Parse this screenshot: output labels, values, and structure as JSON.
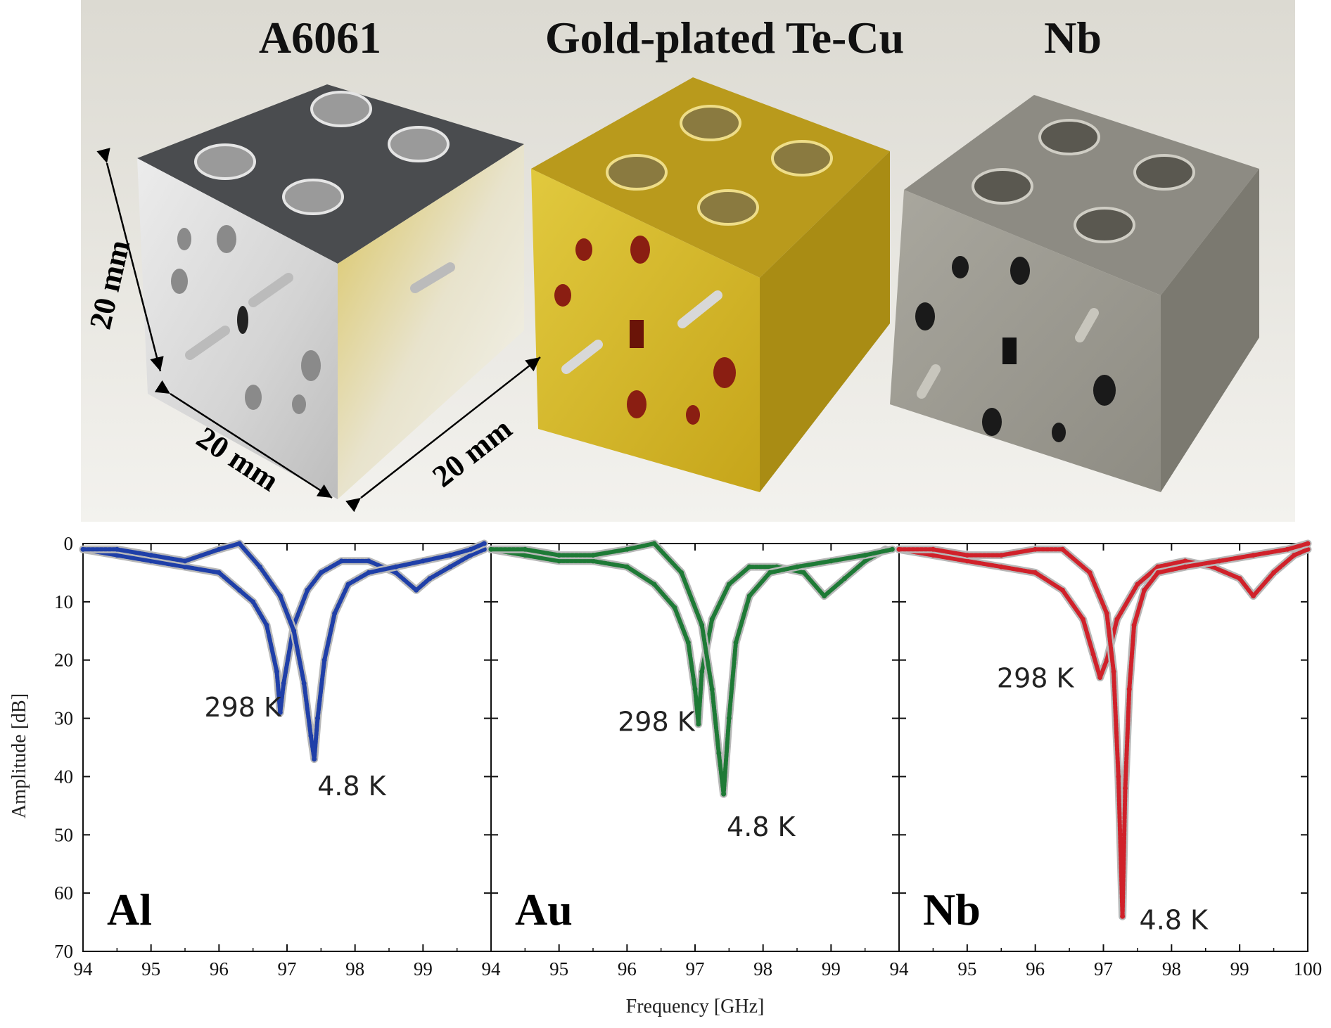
{
  "photo": {
    "titles": [
      "A6061",
      "Gold-plated Te-Cu",
      "Nb"
    ],
    "dimension_labels": [
      "20 mm",
      "20 mm",
      "20 mm"
    ],
    "colors": {
      "aluminum": "#d8d8d8",
      "gold": "#c9a617",
      "niobium": "#9c9a90",
      "background": "#e8e6df"
    }
  },
  "chart_data": [
    {
      "type": "line",
      "panel_label": "Al",
      "color": "#1f3fa8",
      "xlim": [
        94,
        100
      ],
      "ylim": [
        0,
        70
      ],
      "y_inverted": true,
      "x_ticks": [
        "94",
        "95",
        "96",
        "97",
        "98",
        "99"
      ],
      "y_ticks": [
        "0",
        "10",
        "20",
        "30",
        "40",
        "50",
        "60",
        "70"
      ],
      "series": [
        {
          "name": "298 K",
          "x": [
            94.0,
            94.5,
            95.0,
            95.5,
            96.0,
            96.3,
            96.5,
            96.7,
            96.85,
            96.9,
            96.95,
            97.1,
            97.3,
            97.5,
            97.8,
            98.2,
            98.6,
            98.9,
            99.1,
            99.4,
            99.7,
            99.9
          ],
          "y": [
            1,
            2,
            3,
            4,
            5,
            8,
            10,
            14,
            22,
            29,
            24,
            14,
            8,
            5,
            3,
            3,
            5,
            8,
            6,
            4,
            2,
            1
          ]
        },
        {
          "name": "4.8 K",
          "x": [
            94.0,
            94.5,
            95.0,
            95.5,
            96.0,
            96.3,
            96.6,
            96.9,
            97.1,
            97.25,
            97.35,
            97.4,
            97.45,
            97.55,
            97.7,
            97.9,
            98.2,
            98.6,
            99.0,
            99.4,
            99.7,
            99.9
          ],
          "y": [
            1,
            1,
            2,
            3,
            1,
            0,
            4,
            9,
            15,
            24,
            33,
            37,
            30,
            20,
            12,
            7,
            5,
            4,
            3,
            2,
            1,
            0
          ]
        }
      ],
      "annotations": [
        "298 K",
        "4.8 K"
      ]
    },
    {
      "type": "line",
      "panel_label": "Au",
      "color": "#1e7a36",
      "xlim": [
        94,
        100
      ],
      "ylim": [
        0,
        70
      ],
      "y_inverted": true,
      "x_ticks": [
        "94",
        "95",
        "96",
        "97",
        "98",
        "99"
      ],
      "y_ticks": [],
      "series": [
        {
          "name": "298 K",
          "x": [
            94.0,
            94.5,
            95.0,
            95.5,
            96.0,
            96.4,
            96.7,
            96.9,
            97.0,
            97.05,
            97.1,
            97.25,
            97.5,
            97.8,
            98.2,
            98.6,
            98.9,
            99.2,
            99.5,
            99.8
          ],
          "y": [
            1,
            2,
            3,
            3,
            4,
            7,
            11,
            17,
            25,
            31,
            22,
            13,
            7,
            4,
            4,
            5,
            9,
            6,
            3,
            1
          ]
        },
        {
          "name": "4.8 K",
          "x": [
            94.0,
            94.5,
            95.0,
            95.5,
            96.0,
            96.4,
            96.8,
            97.1,
            97.25,
            97.35,
            97.42,
            97.5,
            97.6,
            97.8,
            98.1,
            98.5,
            99.0,
            99.5,
            99.9
          ],
          "y": [
            1,
            1,
            2,
            2,
            1,
            0,
            5,
            14,
            25,
            36,
            43,
            30,
            17,
            9,
            5,
            4,
            3,
            2,
            1
          ]
        }
      ],
      "annotations": [
        "298 K",
        "4.8 K"
      ]
    },
    {
      "type": "line",
      "panel_label": "Nb",
      "color": "#d0212a",
      "xlim": [
        94,
        100
      ],
      "ylim": [
        0,
        70
      ],
      "y_inverted": true,
      "x_ticks": [
        "94",
        "95",
        "96",
        "97",
        "98",
        "99",
        "100"
      ],
      "y_ticks": [],
      "series": [
        {
          "name": "298 K",
          "x": [
            94.0,
            94.5,
            95.0,
            95.5,
            96.0,
            96.4,
            96.7,
            96.85,
            96.95,
            97.05,
            97.2,
            97.5,
            97.8,
            98.2,
            98.6,
            99.0,
            99.2,
            99.5,
            99.8,
            100.0
          ],
          "y": [
            1,
            2,
            3,
            4,
            5,
            8,
            13,
            19,
            23,
            20,
            13,
            7,
            4,
            3,
            4,
            6,
            9,
            5,
            2,
            1
          ]
        },
        {
          "name": "4.8 K",
          "x": [
            94.0,
            94.5,
            95.0,
            95.5,
            96.0,
            96.4,
            96.8,
            97.05,
            97.15,
            97.22,
            97.28,
            97.32,
            97.38,
            97.45,
            97.6,
            97.8,
            98.2,
            98.7,
            99.2,
            99.7,
            100.0
          ],
          "y": [
            1,
            1,
            2,
            2,
            1,
            1,
            5,
            12,
            22,
            40,
            64,
            42,
            25,
            14,
            8,
            5,
            4,
            3,
            2,
            1,
            0
          ]
        }
      ],
      "annotations": [
        "298 K",
        "4.8 K"
      ]
    }
  ],
  "axes": {
    "xlabel": "Frequency [GHz]",
    "ylabel": "Amplitude [dB]"
  }
}
